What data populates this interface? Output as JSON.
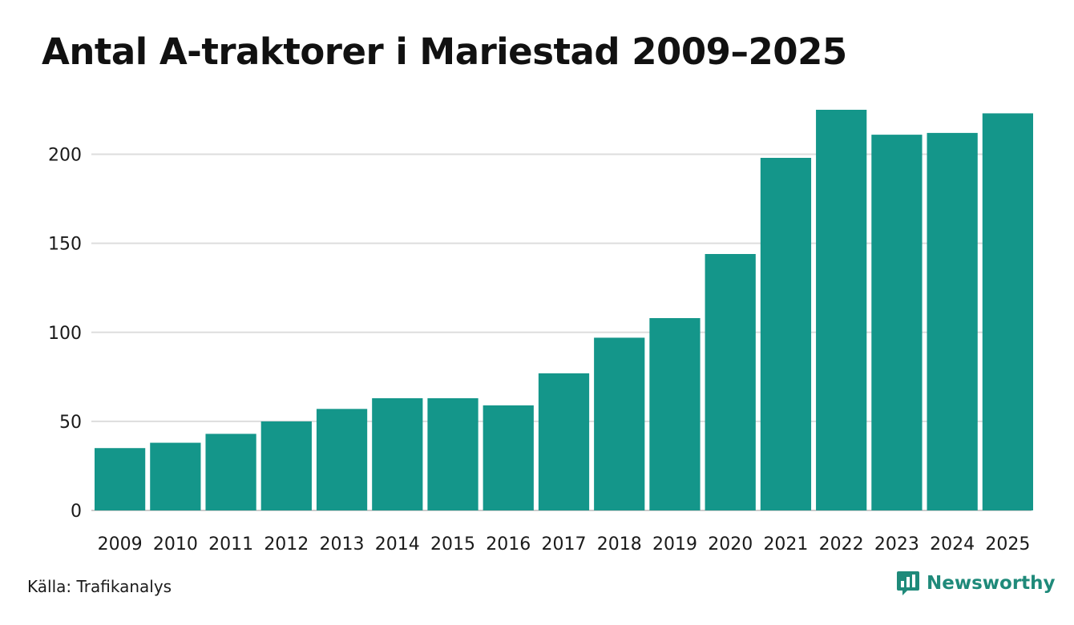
{
  "colors": {
    "bar": "#14968a",
    "grid": "#dddddd",
    "brand": "#1f8a7a"
  },
  "chart_data": {
    "type": "bar",
    "title": "Antal A-traktorer i Mariestad 2009–2025",
    "categories": [
      "2009",
      "2010",
      "2011",
      "2012",
      "2013",
      "2014",
      "2015",
      "2016",
      "2017",
      "2018",
      "2019",
      "2020",
      "2021",
      "2022",
      "2023",
      "2024",
      "2025"
    ],
    "values": [
      35,
      38,
      43,
      50,
      57,
      63,
      63,
      59,
      77,
      97,
      108,
      144,
      198,
      225,
      211,
      212,
      223
    ],
    "ylim": [
      0,
      225
    ],
    "yticks": [
      0,
      50,
      100,
      150,
      200
    ],
    "grid": true,
    "xlabel": "",
    "ylabel": ""
  },
  "source": "Källa: Trafikanalys",
  "brand": {
    "name": "Newsworthy",
    "icon": "bar-chart-speech-bubble-icon"
  }
}
